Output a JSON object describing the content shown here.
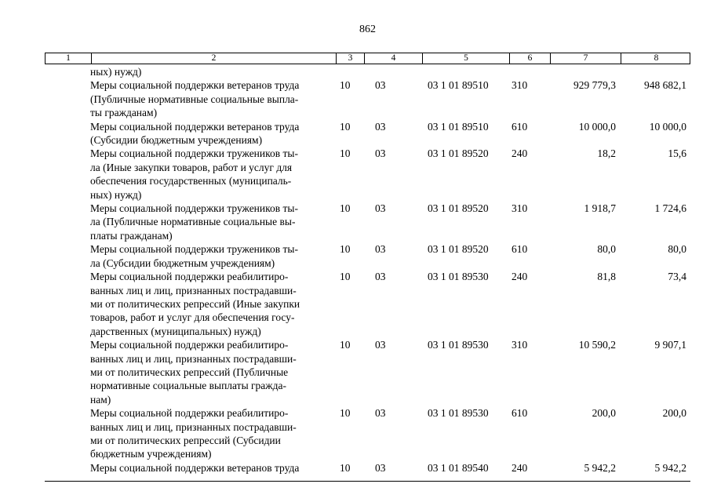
{
  "page": {
    "number": "862"
  },
  "table": {
    "header": [
      "1",
      "2",
      "3",
      "4",
      "5",
      "6",
      "7",
      "8"
    ],
    "rows": [
      {
        "name_lines": [
          "ных) нужд)"
        ],
        "values": [
          "",
          "",
          "",
          "",
          "",
          ""
        ]
      },
      {
        "name_lines": [
          "Меры социальной поддержки ветеранов труда",
          "(Публичные нормативные социальные выпла-",
          "ты гражданам)"
        ],
        "values": [
          "10",
          "03",
          "03 1 01 89510",
          "310",
          "929 779,3",
          "948 682,1"
        ]
      },
      {
        "name_lines": [
          "Меры социальной поддержки ветеранов труда",
          "(Субсидии бюджетным учреждениям)"
        ],
        "values": [
          "10",
          "03",
          "03 1 01 89510",
          "610",
          "10 000,0",
          "10 000,0"
        ]
      },
      {
        "name_lines": [
          "Меры социальной поддержки тружеников ты-",
          "ла (Иные закупки товаров, работ и услуг для",
          "обеспечения государственных (муниципаль-",
          "ных) нужд)"
        ],
        "values": [
          "10",
          "03",
          "03 1 01 89520",
          "240",
          "18,2",
          "15,6"
        ]
      },
      {
        "name_lines": [
          "Меры социальной поддержки тружеников ты-",
          "ла (Публичные нормативные социальные вы-",
          "платы гражданам)"
        ],
        "values": [
          "10",
          "03",
          "03 1 01 89520",
          "310",
          "1 918,7",
          "1 724,6"
        ]
      },
      {
        "name_lines": [
          "Меры социальной поддержки тружеников ты-",
          "ла (Субсидии бюджетным учреждениям)"
        ],
        "values": [
          "10",
          "03",
          "03 1 01 89520",
          "610",
          "80,0",
          "80,0"
        ]
      },
      {
        "name_lines": [
          "Меры социальной поддержки реабилитиро-",
          "ванных лиц и лиц, признанных пострадавши-",
          "ми от политических репрессий (Иные закупки",
          "товаров, работ и услуг для обеспечения госу-",
          "дарственных (муниципальных) нужд)"
        ],
        "values": [
          "10",
          "03",
          "03 1 01 89530",
          "240",
          "81,8",
          "73,4"
        ]
      },
      {
        "name_lines": [
          "Меры социальной поддержки реабилитиро-",
          "ванных лиц и лиц, признанных пострадавши-",
          "ми от политических репрессий (Публичные",
          "нормативные социальные выплаты гражда-",
          "нам)"
        ],
        "values": [
          "10",
          "03",
          "03 1 01 89530",
          "310",
          "10 590,2",
          "9 907,1"
        ]
      },
      {
        "name_lines": [
          "Меры социальной поддержки реабилитиро-",
          "ванных лиц и лиц, признанных пострадавши-",
          "ми от политических репрессий (Субсидии",
          "бюджетным учреждениям)"
        ],
        "values": [
          "10",
          "03",
          "03 1 01 89530",
          "610",
          "200,0",
          "200,0"
        ]
      },
      {
        "name_lines": [
          "Меры социальной поддержки ветеранов труда"
        ],
        "values": [
          "10",
          "03",
          "03 1 01 89540",
          "240",
          "5 942,2",
          "5 942,2"
        ]
      }
    ]
  }
}
